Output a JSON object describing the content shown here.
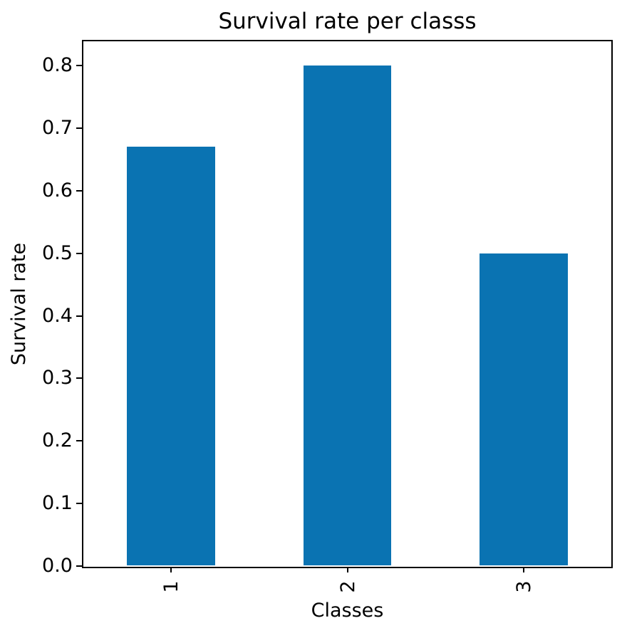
{
  "chart_data": {
    "type": "bar",
    "title": "Survival rate per classs",
    "xlabel": "Classes",
    "ylabel": "Survival rate",
    "categories": [
      "1",
      "2",
      "3"
    ],
    "values": [
      0.67,
      0.8,
      0.5
    ],
    "ytick_values": [
      0.0,
      0.1,
      0.2,
      0.3,
      0.4,
      0.5,
      0.6,
      0.7,
      0.8
    ],
    "ytick_labels": [
      "0.0",
      "0.1",
      "0.2",
      "0.3",
      "0.4",
      "0.5",
      "0.6",
      "0.7",
      "0.8"
    ],
    "ylim": [
      0,
      0.84
    ],
    "xtick_rotation": 90,
    "bar_width_fraction": 0.5,
    "bar_color": "#0a73b2",
    "axis_color": "#000000",
    "background_color": "#ffffff",
    "grid": false,
    "legend_position": "none"
  }
}
